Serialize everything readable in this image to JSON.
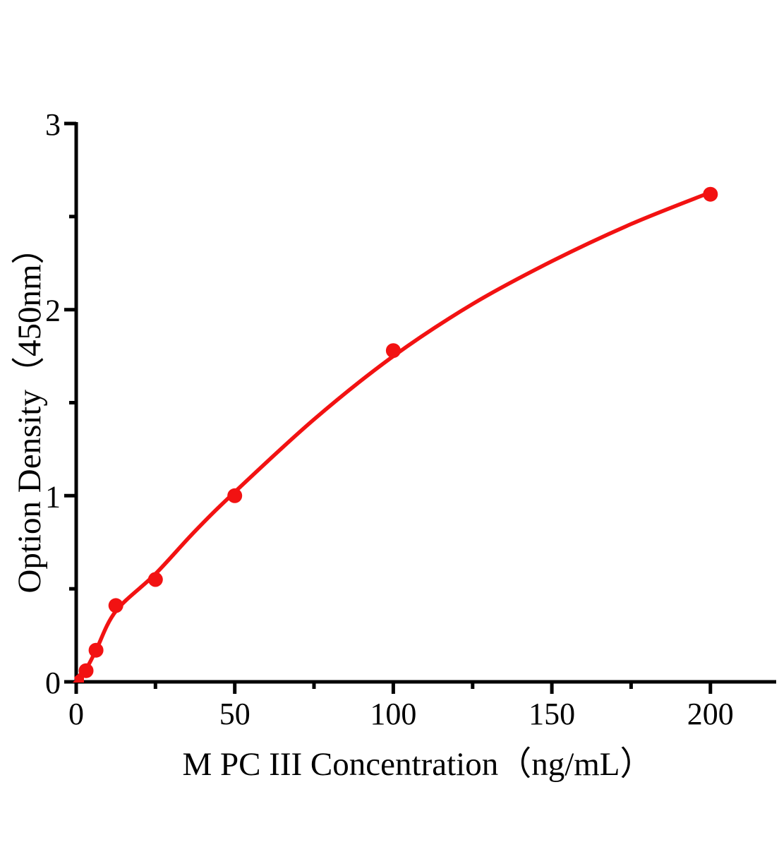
{
  "page": {
    "background": "#ffffff"
  },
  "chart_data": {
    "type": "scatter",
    "subtype": "elisa-standard-curve",
    "title": "",
    "xlabel": "M PC III Concentration（ng/mL）",
    "ylabel": "Option Density（450nm）",
    "xlim": [
      0,
      220
    ],
    "ylim": [
      0,
      3
    ],
    "grid": false,
    "legend_position": "none",
    "axis_color": "#000000",
    "series_color": "#f21212",
    "x_axis": {
      "major_ticks": [
        0,
        50,
        100,
        150,
        200
      ],
      "tick_labels": [
        "0",
        "50",
        "100",
        "150",
        "200"
      ],
      "minor_ticks": [
        25,
        75,
        125,
        175
      ]
    },
    "y_axis": {
      "major_ticks": [
        0,
        1,
        2,
        3
      ],
      "tick_labels": [
        "0",
        "1",
        "2",
        "3"
      ],
      "minor_ticks": [
        0.5,
        1.5,
        2.5
      ]
    },
    "points": [
      {
        "x": 0,
        "y": 0.02,
        "marker": "triangle"
      },
      {
        "x": 3.125,
        "y": 0.06,
        "marker": "circle"
      },
      {
        "x": 6.25,
        "y": 0.17,
        "marker": "circle"
      },
      {
        "x": 12.5,
        "y": 0.41,
        "marker": "circle"
      },
      {
        "x": 25,
        "y": 0.55,
        "marker": "circle"
      },
      {
        "x": 50,
        "y": 1.0,
        "marker": "circle"
      },
      {
        "x": 100,
        "y": 1.78,
        "marker": "circle"
      },
      {
        "x": 200,
        "y": 2.62,
        "marker": "circle"
      }
    ],
    "fit_curve": [
      [
        0,
        0.02
      ],
      [
        3.125,
        0.07
      ],
      [
        6.25,
        0.17
      ],
      [
        12.5,
        0.38
      ],
      [
        25,
        0.58
      ],
      [
        37.5,
        0.81
      ],
      [
        50,
        1.02
      ],
      [
        75,
        1.41
      ],
      [
        100,
        1.75
      ],
      [
        125,
        2.03
      ],
      [
        150,
        2.26
      ],
      [
        175,
        2.46
      ],
      [
        200,
        2.63
      ]
    ]
  }
}
